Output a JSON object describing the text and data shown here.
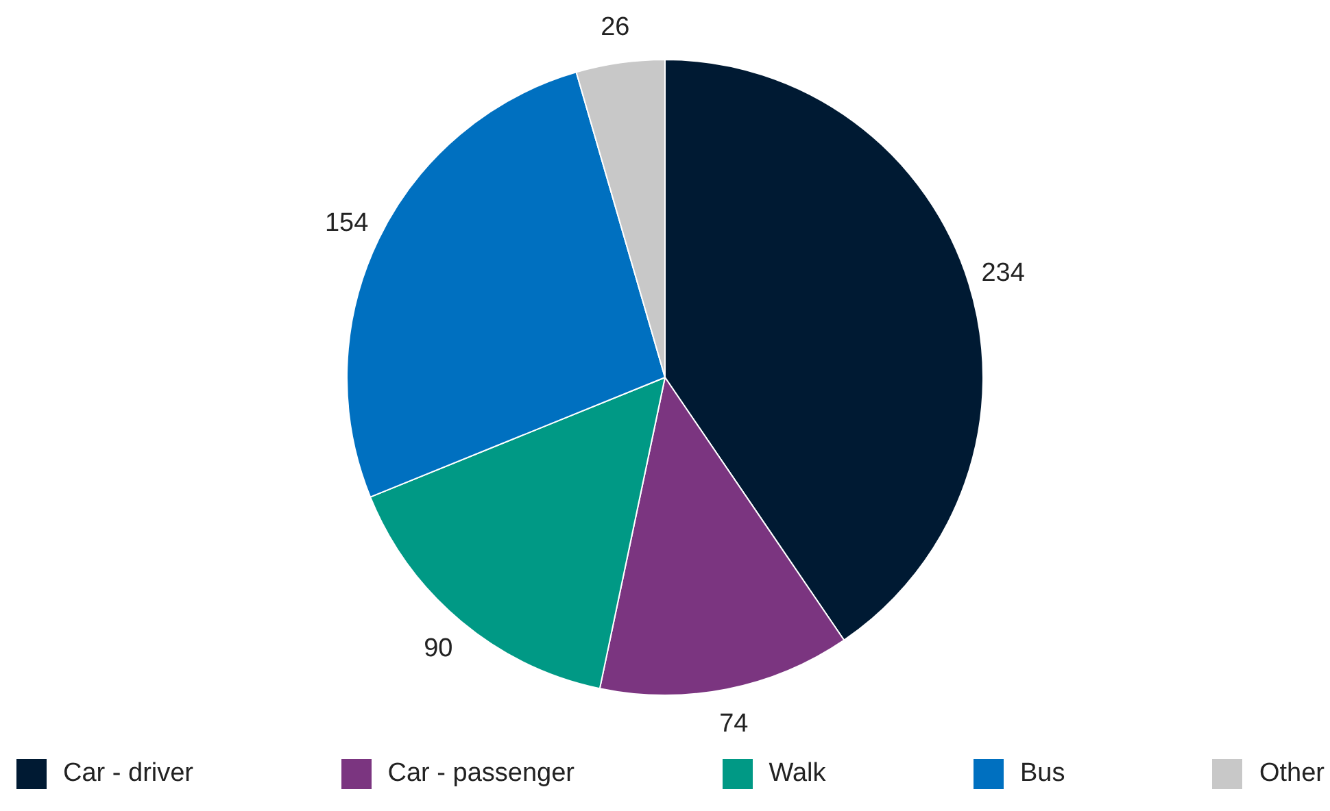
{
  "chart_data": {
    "type": "pie",
    "categories": [
      "Car - driver",
      "Car - passenger",
      "Walk",
      "Bus",
      "Other"
    ],
    "values": [
      234,
      74,
      90,
      154,
      26
    ],
    "colors": [
      "#001a33",
      "#7b3580",
      "#009985",
      "#0070c0",
      "#c8c8c8"
    ],
    "data_labels": true,
    "legend": "bottom"
  }
}
